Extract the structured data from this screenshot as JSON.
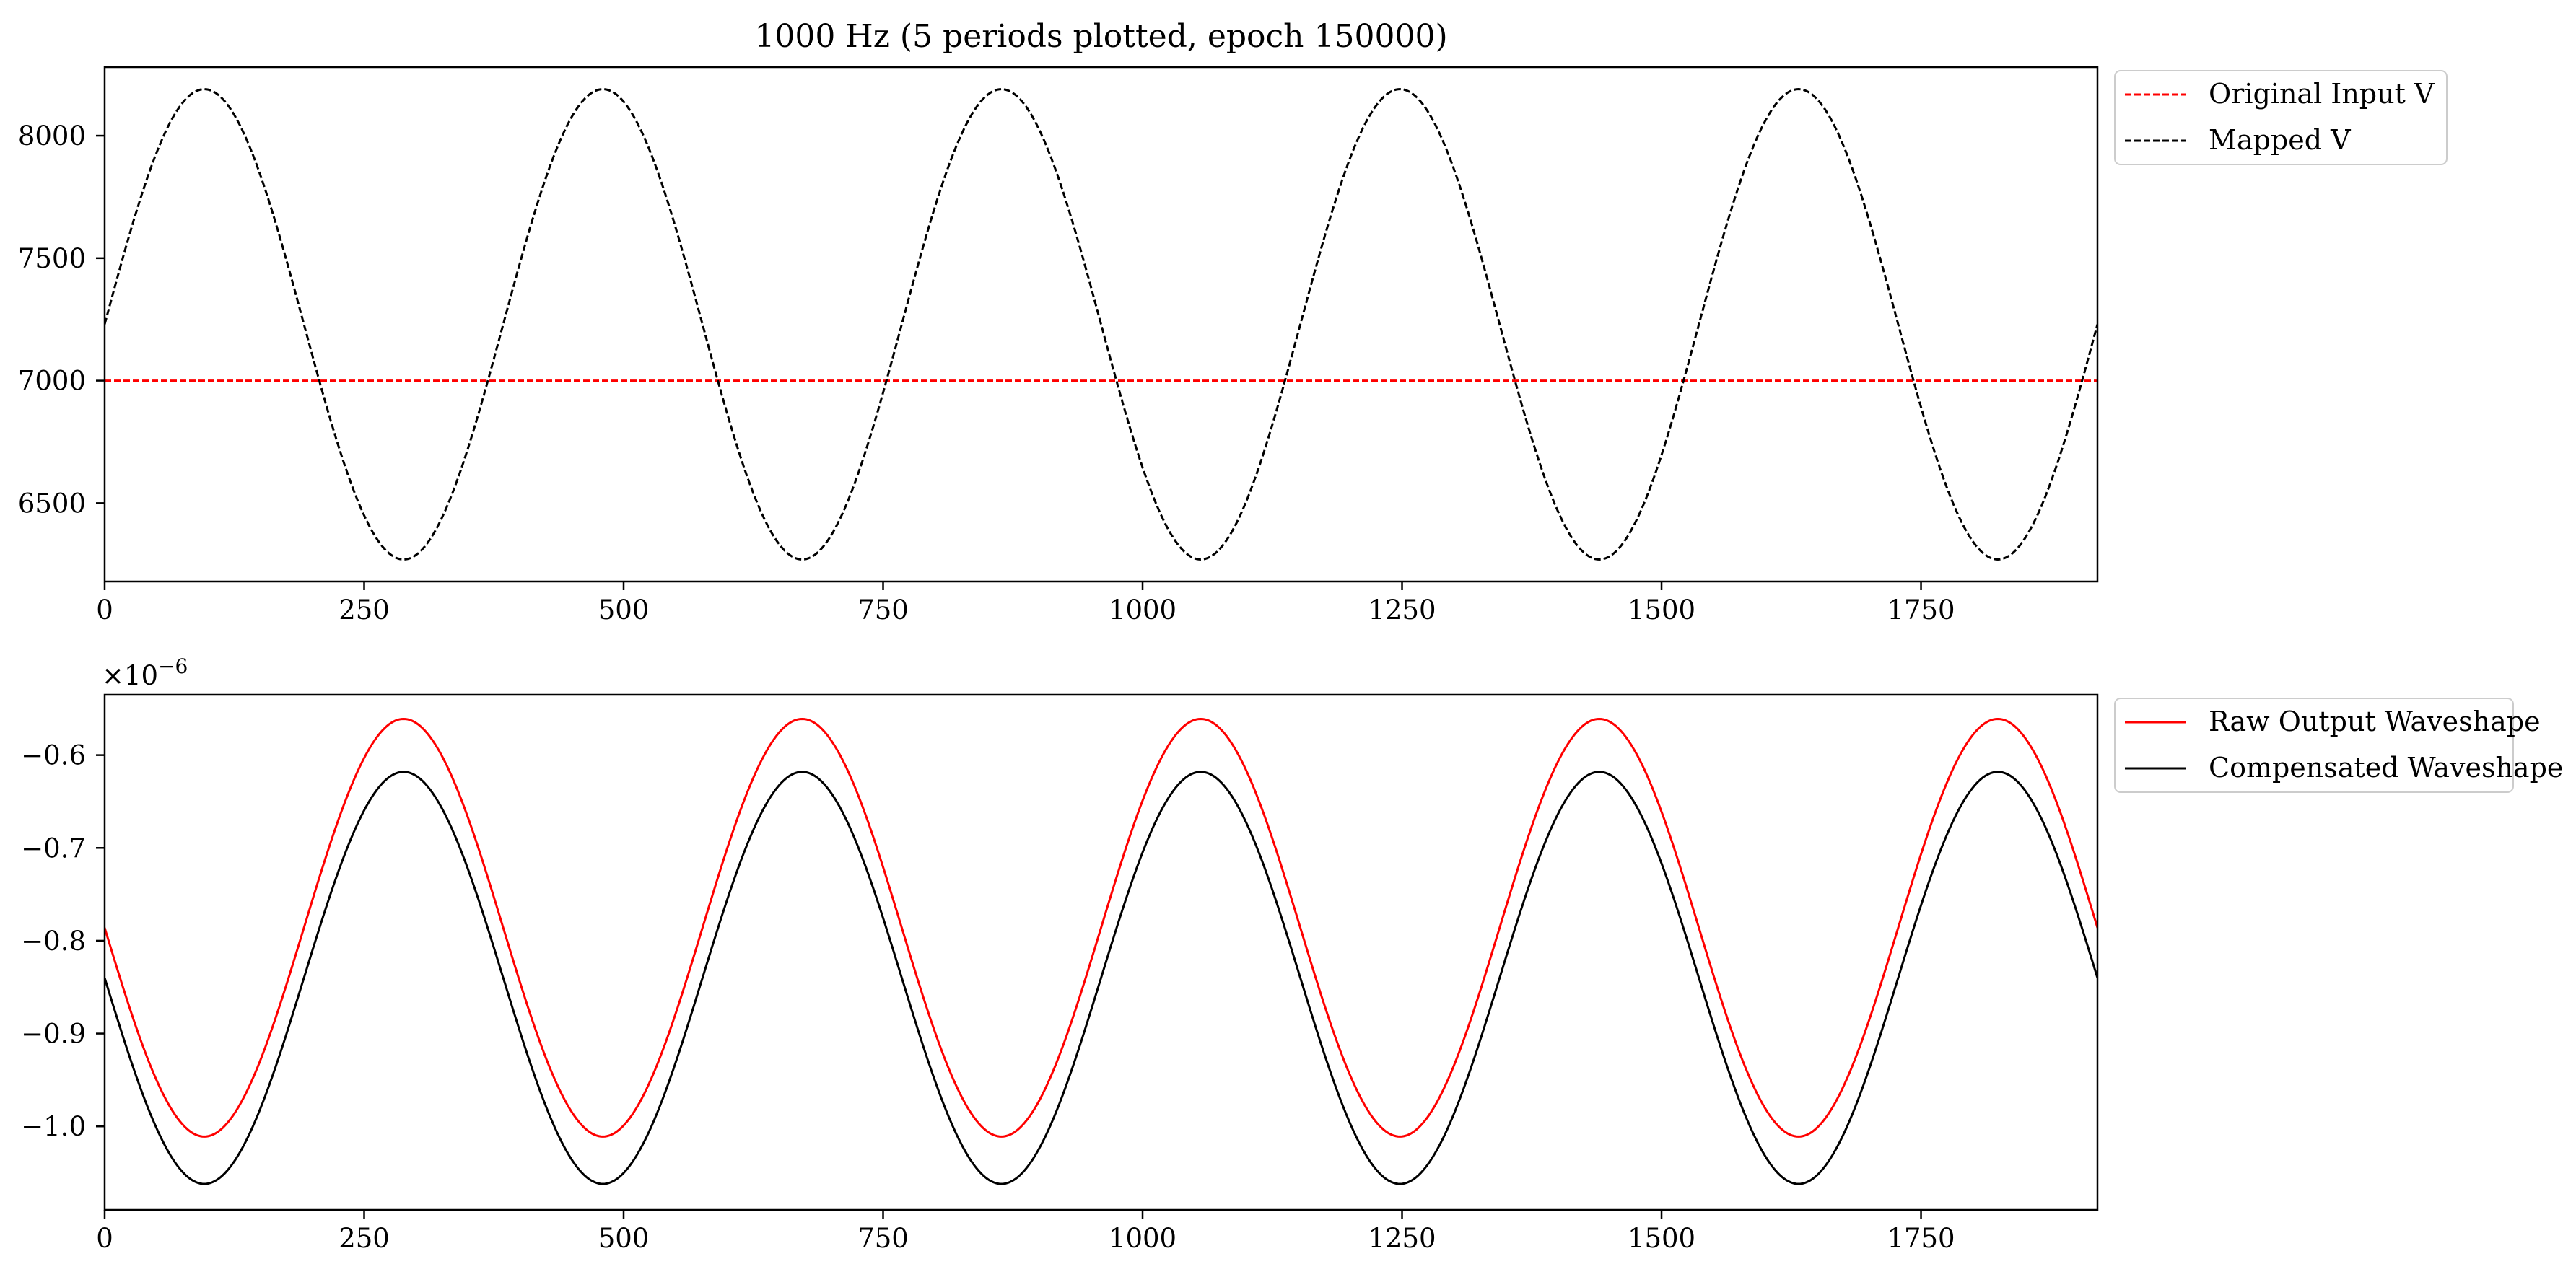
{
  "chart_data": [
    {
      "type": "line",
      "title": "1000 Hz (5 periods plotted, epoch 150000)",
      "xlabel": "",
      "ylabel": "",
      "xlim": [
        0,
        1920
      ],
      "ylim": [
        6180,
        8280
      ],
      "xticks": [
        0,
        250,
        500,
        750,
        1000,
        1250,
        1500,
        1750
      ],
      "yticks": [
        6500,
        7000,
        7500,
        8000
      ],
      "grid": false,
      "legend_position": "outside-top-right",
      "series": [
        {
          "name": "Original Input V",
          "color": "#ff0000",
          "style": "dashed",
          "kind": "constant",
          "value": 7000
        },
        {
          "name": "Mapped V",
          "color": "#000000",
          "style": "dashed",
          "kind": "sine",
          "offset": 7230,
          "amplitude": 960,
          "period": 384,
          "x_peak": 96
        }
      ]
    },
    {
      "type": "line",
      "title": "",
      "xlabel": "",
      "ylabel": "",
      "y_multiplier_text": "×10",
      "y_multiplier_exponent": "−6",
      "xlim": [
        0,
        1920
      ],
      "ylim": [
        -1.09,
        -0.535
      ],
      "xticks": [
        0,
        250,
        500,
        750,
        1000,
        1250,
        1500,
        1750
      ],
      "yticks": [
        -1.0,
        -0.9,
        -0.8,
        -0.7,
        -0.6
      ],
      "ytick_labels": [
        "−1.0",
        "−0.9",
        "−0.8",
        "−0.7",
        "−0.6"
      ],
      "grid": false,
      "legend_position": "outside-top-right",
      "series": [
        {
          "name": "Raw Output Waveshape",
          "color": "#ff0000",
          "style": "solid",
          "kind": "sine",
          "offset": -0.786,
          "amplitude": 0.225,
          "period": 384,
          "x_peak": 288
        },
        {
          "name": "Compensated Waveshape",
          "color": "#000000",
          "style": "solid",
          "kind": "sine",
          "offset": -0.84,
          "amplitude": 0.222,
          "period": 384,
          "x_peak": 288
        }
      ]
    }
  ]
}
